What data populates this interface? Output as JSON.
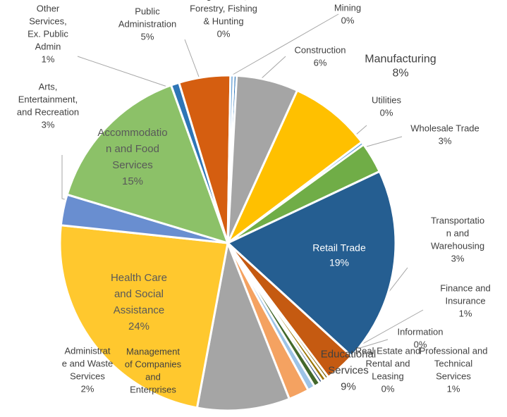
{
  "chart_data": {
    "type": "pie",
    "title": "",
    "start_angle_deg": 2,
    "slices": [
      {
        "category": "Mining",
        "value": 0.3,
        "label": "0%",
        "color": "#2E75B6"
      },
      {
        "category": "Construction",
        "value": 6,
        "label": "6%",
        "color": "#A5A5A5"
      },
      {
        "category": "Manufacturing",
        "value": 8,
        "label": "8%",
        "color": "#FFC000"
      },
      {
        "category": "Utilities",
        "value": 0.3,
        "label": "0%",
        "color": "#5B9BD5"
      },
      {
        "category": "Wholesale Trade",
        "value": 3,
        "label": "3%",
        "color": "#70AD47"
      },
      {
        "category": "Retail Trade",
        "value": 19,
        "label": "19%",
        "color": "#255E91"
      },
      {
        "category": "Transportation and Warehousing",
        "value": 3,
        "label": "3%",
        "color": "#C55A11"
      },
      {
        "category": "Information",
        "value": 0.3,
        "label": "0%",
        "color": "#7F6000"
      },
      {
        "category": "Finance and Insurance",
        "value": 0.4,
        "label": "1%",
        "color": "#997300"
      },
      {
        "category": "Real Estate and Rental and Leasing",
        "value": 0.3,
        "label": "0%",
        "color": "#264478"
      },
      {
        "category": "Professional and Technical Services",
        "value": 0.6,
        "label": "1%",
        "color": "#43682B"
      },
      {
        "category": "Management of Companies and Enterprises",
        "value": 0.7,
        "label": "1%",
        "color": "#9DC3E6"
      },
      {
        "category": "Administrative and Waste Services",
        "value": 2,
        "label": "2%",
        "color": "#F4A261"
      },
      {
        "category": "Educational Services",
        "value": 9,
        "label": "9%",
        "color": "#A5A5A5"
      },
      {
        "category": "Health Care and Social Assistance",
        "value": 24,
        "label": "24%",
        "color": "#FFC82E"
      },
      {
        "category": "Arts, Entertainment, and Recreation",
        "value": 3,
        "label": "3%",
        "color": "#698ED0"
      },
      {
        "category": "Accommodation and Food Services",
        "value": 15,
        "label": "15%",
        "color": "#8CC168"
      },
      {
        "category": "Other Services, Ex. Public Admin",
        "value": 0.8,
        "label": "1%",
        "color": "#2E75B6"
      },
      {
        "category": "Public Administration",
        "value": 5,
        "label": "5%",
        "color": "#D55E10"
      },
      {
        "category": "Agriculture, Forestry, Fishing & Hunting",
        "value": 0.3,
        "label": "0%",
        "color": "#5B9BD5"
      }
    ],
    "data_labels": [
      {
        "lines": [
          "Mining",
          "0%"
        ]
      },
      {
        "lines": [
          "Construction",
          "6%"
        ]
      },
      {
        "lines": [
          "Manufacturing",
          "8%"
        ]
      },
      {
        "lines": [
          "Utilities",
          "0%"
        ]
      },
      {
        "lines": [
          "Wholesale Trade",
          "3%"
        ]
      },
      {
        "lines": [
          "Retail Trade",
          "19%"
        ]
      },
      {
        "lines": [
          "Transportatio",
          "n and",
          "Warehousing",
          "3%"
        ]
      },
      {
        "lines": [
          "Information",
          "0%"
        ]
      },
      {
        "lines": [
          "Finance and",
          "Insurance",
          "1%"
        ]
      },
      {
        "lines": [
          "Real Estate and",
          "Rental and",
          "Leasing",
          "0%"
        ]
      },
      {
        "lines": [
          "Professional and",
          "Technical",
          "Services",
          "1%"
        ]
      },
      {
        "lines": [
          "Management",
          "of Companies",
          "and",
          "Enterprises"
        ]
      },
      {
        "lines": [
          "Administrat",
          "e and Waste",
          "Services",
          "2%"
        ]
      },
      {
        "lines": [
          "Educational",
          "Services",
          "9%"
        ]
      },
      {
        "lines": [
          "Health Care",
          "and Social",
          "Assistance",
          "24%"
        ]
      },
      {
        "lines": [
          "Arts,",
          "Entertainment,",
          "and Recreation",
          "3%"
        ]
      },
      {
        "lines": [
          "Accommodatio",
          "n and Food",
          "Services",
          "15%"
        ]
      },
      {
        "lines": [
          "Other",
          "Services,",
          "Ex. Public",
          "Admin",
          "1%"
        ]
      },
      {
        "lines": [
          "Public",
          "Administration",
          "5%"
        ]
      },
      {
        "lines": [
          "Agriculture,",
          "Forestry, Fishing",
          "& Hunting",
          "0%"
        ]
      }
    ]
  }
}
